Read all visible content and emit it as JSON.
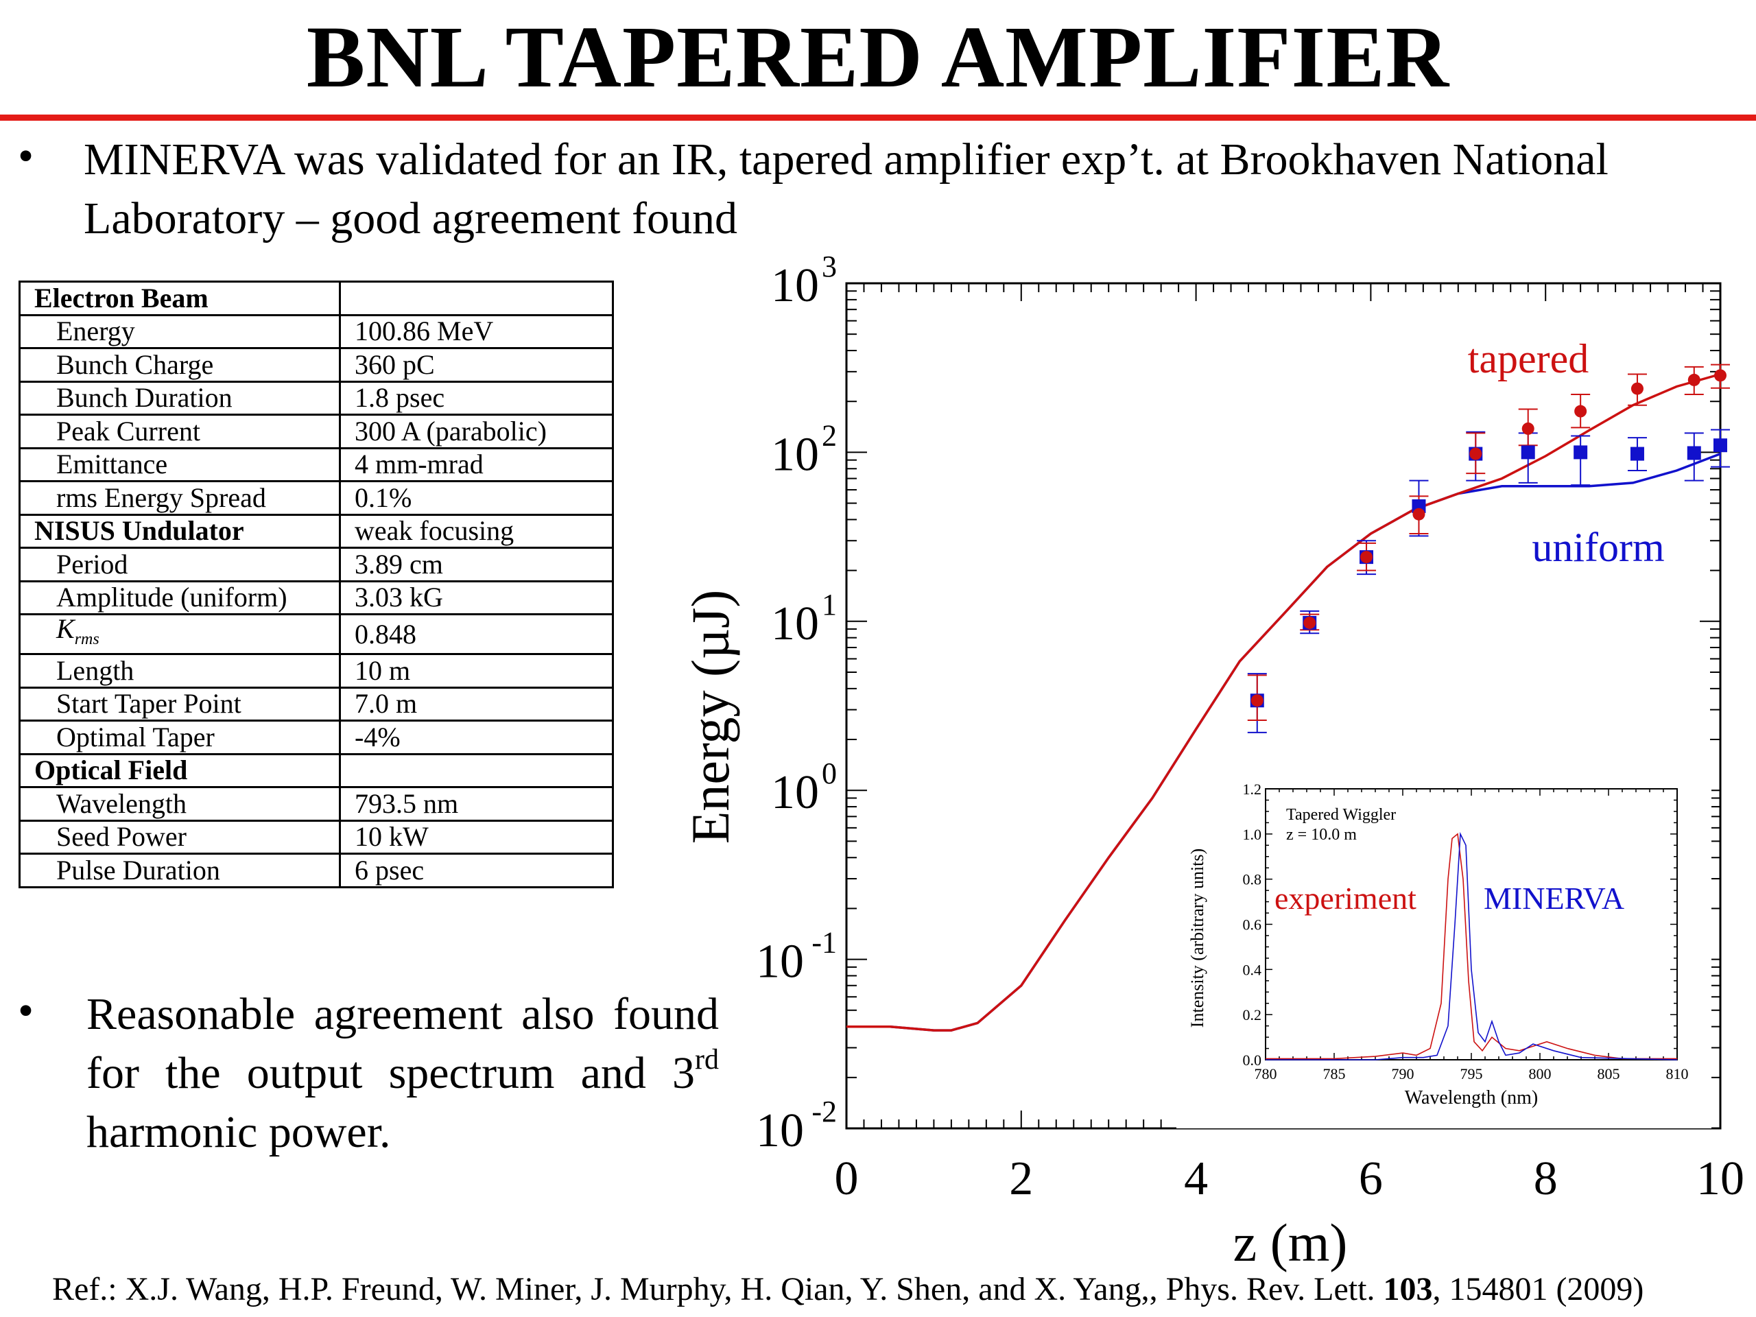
{
  "slide": {
    "title": "BNL TAPERED AMPLIFIER",
    "bullet1": "MINERVA was validated for an IR, tapered amplifier exp’t. at Brookhaven National Laboratory – good agreement found",
    "bullet2_part1": "Reasonable agreement also found for the output spectrum and 3",
    "bullet2_sup": "rd",
    "bullet2_part2": " harmonic power.",
    "reference": {
      "prefix": "Ref.: X.J. Wang, H.P. Freund, W. Miner, J. Murphy, H. Qian, Y. Shen, and X. Yang,, Phys. Rev. Lett. ",
      "volume": "103",
      "suffix": ", 154801 (2009)"
    },
    "colors": {
      "title_rule": "#e41b17",
      "tapered": "#cc1111",
      "uniform": "#1111cc"
    }
  },
  "table": {
    "rows": [
      {
        "label": "Electron Beam",
        "value": "",
        "header": true
      },
      {
        "label": "Energy",
        "value": "100.86 MeV"
      },
      {
        "label": "Bunch Charge",
        "value": "360 pC"
      },
      {
        "label": "Bunch Duration",
        "value": "1.8 psec"
      },
      {
        "label": "Peak Current",
        "value": "300 A (parabolic)"
      },
      {
        "label": "Emittance",
        "value": "4 mm-mrad"
      },
      {
        "label": "rms Energy Spread",
        "value": "0.1%"
      },
      {
        "label": "NISUS Undulator",
        "value": "weak focusing",
        "header": true
      },
      {
        "label": "Period",
        "value": "3.89 cm"
      },
      {
        "label": "Amplitude (uniform)",
        "value": "3.03 kG"
      },
      {
        "label": "K",
        "label_sub": "rms",
        "value": "0.848"
      },
      {
        "label": "Length",
        "value": "10 m"
      },
      {
        "label": "Start Taper Point",
        "value": "7.0 m"
      },
      {
        "label": "Optimal Taper",
        "value": "-4%"
      },
      {
        "label": "Optical Field",
        "value": "",
        "header": true
      },
      {
        "label": "Wavelength",
        "value": "793.5 nm"
      },
      {
        "label": "Seed Power",
        "value": "10 kW"
      },
      {
        "label": "Pulse Duration",
        "value": "6 psec"
      }
    ]
  },
  "chart_data": [
    {
      "type": "line",
      "xlabel": "z (m)",
      "ylabel": "Energy (μJ)",
      "ylabel_display": "Energy (µJ)",
      "xlim": [
        0,
        10
      ],
      "ylim": [
        0.01,
        1000
      ],
      "yscale": "log",
      "x_ticks": [
        "0",
        "2",
        "4",
        "6",
        "8",
        "10"
      ],
      "y_ticks": [
        {
          "base": "10",
          "exp": "-2"
        },
        {
          "base": "10",
          "exp": "-1"
        },
        {
          "base": "10",
          "exp": "0"
        },
        {
          "base": "10",
          "exp": "1"
        },
        {
          "base": "10",
          "exp": "2"
        },
        {
          "base": "10",
          "exp": "3"
        }
      ],
      "annotations": [
        "tapered",
        "uniform"
      ],
      "grid": false,
      "series": [
        {
          "name": "tapered",
          "kind": "simulation",
          "x": [
            0,
            0.5,
            1.0,
            1.2,
            1.5,
            2.0,
            2.5,
            3.0,
            3.5,
            4.0,
            4.5,
            5.0,
            5.5,
            6.0,
            6.5,
            7.0,
            7.5,
            8.0,
            8.5,
            9.0,
            9.5,
            10.0
          ],
          "y": [
            0.04,
            0.04,
            0.038,
            0.038,
            0.042,
            0.07,
            0.17,
            0.4,
            0.9,
            2.3,
            5.8,
            11,
            21,
            33,
            46,
            57,
            70,
            95,
            135,
            190,
            245,
            290
          ]
        },
        {
          "name": "uniform",
          "kind": "simulation",
          "x": [
            0,
            0.5,
            1.0,
            1.2,
            1.5,
            2.0,
            2.5,
            3.0,
            3.5,
            4.0,
            4.5,
            5.0,
            5.5,
            6.0,
            6.5,
            7.0,
            7.5,
            8.0,
            8.5,
            9.0,
            9.5,
            10.0
          ],
          "y": [
            0.04,
            0.04,
            0.038,
            0.038,
            0.042,
            0.07,
            0.17,
            0.4,
            0.9,
            2.3,
            5.8,
            11,
            21,
            33,
            46,
            57,
            63,
            63,
            63,
            66,
            78,
            98
          ]
        },
        {
          "name": "tapered",
          "kind": "experiment",
          "marker": "circle",
          "x": [
            4.7,
            5.3,
            5.95,
            6.55,
            7.2,
            7.8,
            8.4,
            9.05,
            9.7,
            10.0
          ],
          "y": [
            3.4,
            9.8,
            24,
            43,
            98,
            138,
            175,
            238,
            268,
            285
          ],
          "err_lo": [
            2.6,
            8.9,
            20,
            33,
            75,
            110,
            140,
            190,
            220,
            240
          ],
          "err_hi": [
            4.8,
            11,
            29,
            55,
            130,
            180,
            220,
            290,
            320,
            330
          ]
        },
        {
          "name": "uniform",
          "kind": "experiment",
          "marker": "square",
          "x": [
            4.7,
            5.3,
            5.95,
            6.55,
            7.2,
            7.8,
            8.4,
            9.05,
            9.7,
            10.0
          ],
          "y": [
            3.4,
            9.8,
            24,
            48,
            98,
            100,
            100,
            98,
            99,
            110
          ],
          "err_lo": [
            2.2,
            8.5,
            19,
            32,
            68,
            66,
            64,
            78,
            68,
            82
          ],
          "err_hi": [
            4.9,
            11.5,
            30,
            68,
            132,
            130,
            125,
            122,
            130,
            136
          ]
        }
      ]
    },
    {
      "type": "line",
      "title_lines": [
        "Tapered Wiggler",
        "z = 10.0 m"
      ],
      "xlabel": "Wavelength (nm)",
      "ylabel": "Intensity (arbitrary units)",
      "xlim": [
        780,
        810
      ],
      "ylim": [
        0,
        1.2
      ],
      "x_ticks": [
        "780",
        "785",
        "790",
        "795",
        "800",
        "805",
        "810"
      ],
      "y_ticks": [
        "0.0",
        "0.2",
        "0.4",
        "0.6",
        "0.8",
        "1.0",
        "1.2"
      ],
      "series": [
        {
          "name": "experiment",
          "x": [
            780,
            785,
            788,
            790,
            791,
            792,
            792.8,
            793.3,
            793.6,
            794.0,
            794.4,
            794.8,
            795.2,
            795.8,
            796.5,
            797.5,
            798.5,
            799.5,
            800.5,
            802,
            804,
            806,
            810
          ],
          "y": [
            0.005,
            0.005,
            0.015,
            0.03,
            0.02,
            0.05,
            0.25,
            0.8,
            0.98,
            1.0,
            0.8,
            0.35,
            0.08,
            0.04,
            0.1,
            0.05,
            0.04,
            0.06,
            0.08,
            0.05,
            0.02,
            0.005,
            0.005
          ]
        },
        {
          "name": "MINERVA",
          "x": [
            780,
            788,
            790,
            791.5,
            792.5,
            793.3,
            793.8,
            794.2,
            794.6,
            795.0,
            795.5,
            796.0,
            796.5,
            797.0,
            797.5,
            798.5,
            799.5,
            801,
            803,
            810
          ],
          "y": [
            0,
            0,
            0.01,
            0.01,
            0.02,
            0.15,
            0.6,
            1.0,
            0.95,
            0.4,
            0.12,
            0.08,
            0.17,
            0.08,
            0.02,
            0.03,
            0.07,
            0.04,
            0.01,
            0
          ]
        }
      ],
      "annotations": [
        "experiment",
        "MINERVA"
      ]
    }
  ]
}
